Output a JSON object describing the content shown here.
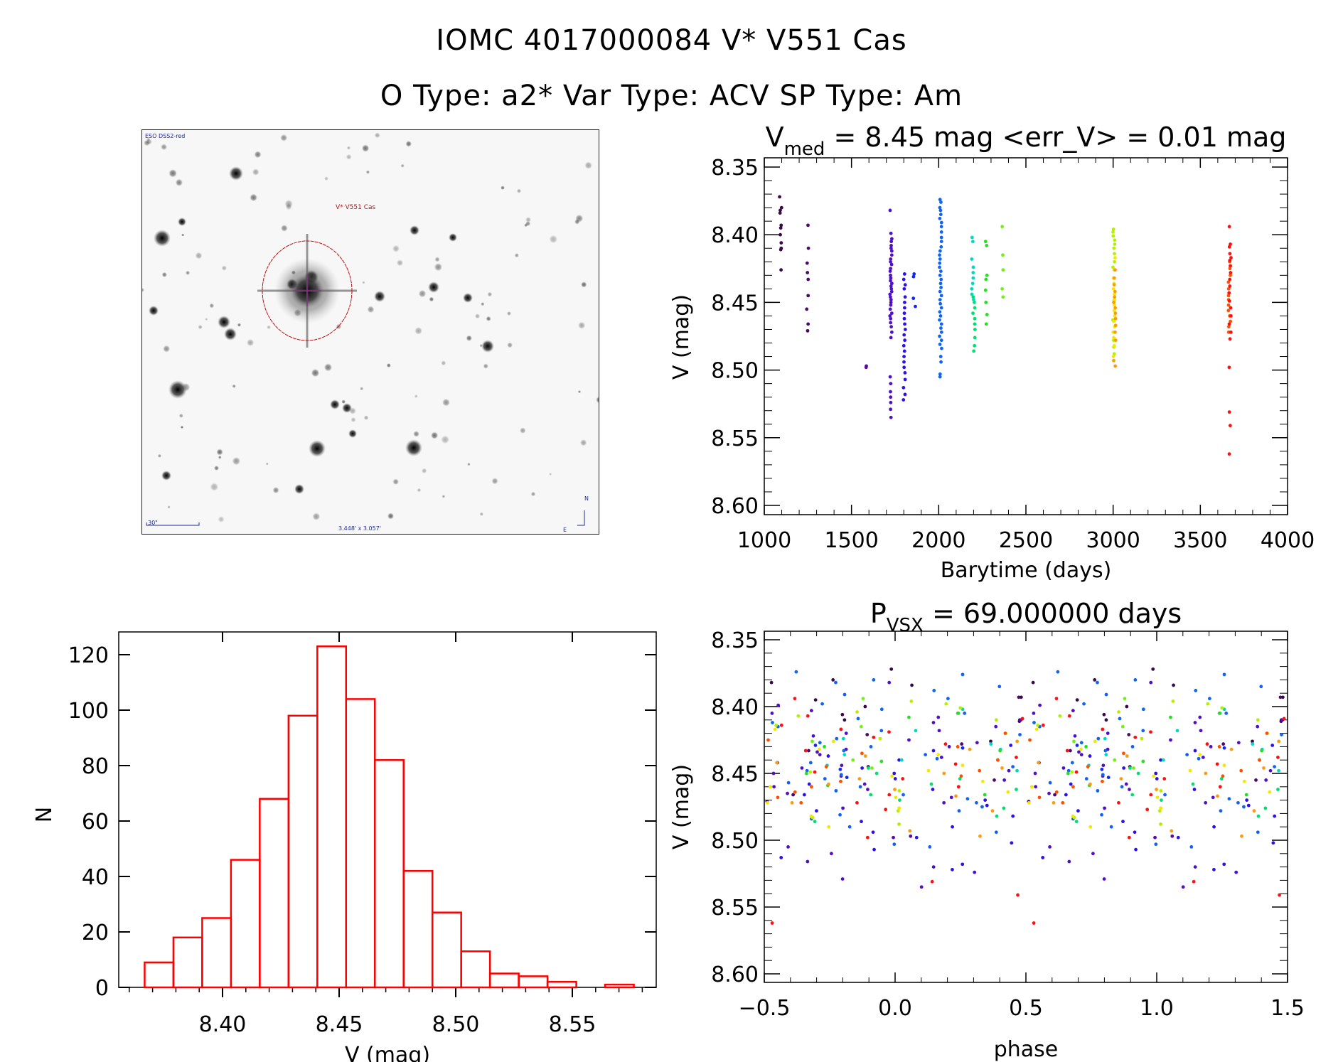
{
  "header": {
    "title_line1": "IOMC 4017000084   V* V551 Cas",
    "title_line2": "O Type: a2*  Var Type: ACV  SP Type: Am"
  },
  "sky_image": {
    "survey_label": "ESO DSS2-red",
    "target_label": "V* V551 Cas",
    "scale_bar_label": "30\"",
    "field_size_label": "3.448' x 3.057'",
    "north_label": "N",
    "east_label": "E",
    "circle_color": "#c01010",
    "crosshair_color": "#a020a0"
  },
  "colors": {
    "histogram": "#ff0000",
    "axis": "#000000"
  },
  "chart_data": [
    {
      "id": "light_curve",
      "type": "scatter",
      "title_main": "V",
      "title_sub": "med",
      "title_rest": " = 8.45 mag <err_V> = 0.01 mag",
      "xlabel": "Barytime (days)",
      "ylabel": "V (mag)",
      "xlim": [
        1000,
        4000
      ],
      "ylim": [
        8.35,
        8.6
      ],
      "y_inverted": true,
      "xticks": [
        1000,
        1500,
        2000,
        2500,
        3000,
        3500,
        4000
      ],
      "xtick_labels": [
        "1000",
        "1500",
        "2000",
        "2500",
        "3000",
        "3500",
        "4000"
      ],
      "yticks": [
        8.35,
        8.4,
        8.45,
        8.5,
        8.55,
        8.6
      ],
      "ytick_labels": [
        "8.35",
        "8.40",
        "8.45",
        "8.50",
        "8.55",
        "8.60"
      ],
      "series": [
        {
          "name": "season-1",
          "color": "#3a0a48",
          "t": 1094,
          "V": [
            8.372,
            8.38,
            8.382,
            8.384,
            8.393,
            8.395,
            8.4,
            8.406,
            8.41,
            8.411,
            8.426
          ]
        },
        {
          "name": "season-2",
          "color": "#4a0a6a",
          "t": 1249,
          "V": [
            8.393,
            8.41,
            8.421,
            8.428,
            8.433,
            8.445,
            8.455,
            8.466,
            8.471
          ]
        },
        {
          "name": "season-3",
          "color": "#5a0aa0",
          "t": 1580,
          "V": [
            8.497,
            8.498
          ]
        },
        {
          "name": "season-4",
          "color": "#5010c8",
          "t": 1726,
          "V": [
            8.382,
            8.399,
            8.403,
            8.405,
            8.408,
            8.41,
            8.412,
            8.415,
            8.418,
            8.42,
            8.422,
            8.425,
            8.427,
            8.43,
            8.432,
            8.434,
            8.436,
            8.438,
            8.44,
            8.442,
            8.444,
            8.446,
            8.448,
            8.45,
            8.452,
            8.455,
            8.458,
            8.46,
            8.462,
            8.465,
            8.468,
            8.472,
            8.476,
            8.505,
            8.51,
            8.516,
            8.52,
            8.524,
            8.529,
            8.535
          ]
        },
        {
          "name": "season-5",
          "color": "#2c12e8",
          "t": 1803,
          "V": [
            8.429,
            8.433,
            8.437,
            8.44,
            8.446,
            8.45,
            8.454,
            8.458,
            8.462,
            8.466,
            8.47,
            8.474,
            8.478,
            8.482,
            8.486,
            8.49,
            8.494,
            8.498,
            8.502,
            8.507,
            8.513,
            8.518,
            8.522
          ]
        },
        {
          "name": "season-6",
          "color": "#1428f4",
          "t": 1860,
          "V": [
            8.429,
            8.431,
            8.447,
            8.453
          ]
        },
        {
          "name": "season-7",
          "color": "#1064f4",
          "t": 2011,
          "V": [
            8.374,
            8.376,
            8.38,
            8.382,
            8.385,
            8.388,
            8.391,
            8.394,
            8.398,
            8.402,
            8.405,
            8.409,
            8.412,
            8.415,
            8.418,
            8.421,
            8.424,
            8.427,
            8.43,
            8.433,
            8.436,
            8.439,
            8.442,
            8.445,
            8.448,
            8.451,
            8.454,
            8.457,
            8.46,
            8.463,
            8.466,
            8.469,
            8.472,
            8.475,
            8.478,
            8.481,
            8.484,
            8.49,
            8.494,
            8.503,
            8.505
          ]
        },
        {
          "name": "season-8",
          "color": "#00d8c0",
          "t": 2195,
          "V": [
            8.402,
            8.405,
            8.418,
            8.424,
            8.428,
            8.432,
            8.436,
            8.44,
            8.444,
            8.448
          ]
        },
        {
          "name": "season-9",
          "color": "#00e070",
          "t": 2202,
          "V": [
            8.446,
            8.45,
            8.454,
            8.458,
            8.462,
            8.466,
            8.47,
            8.476,
            8.482,
            8.486
          ]
        },
        {
          "name": "season-10",
          "color": "#24e020",
          "t": 2272,
          "V": [
            8.405,
            8.408,
            8.43,
            8.433,
            8.441,
            8.45,
            8.459,
            8.466
          ]
        },
        {
          "name": "season-11",
          "color": "#74f018",
          "t": 2366,
          "V": [
            8.394,
            8.415,
            8.426,
            8.44,
            8.446
          ]
        },
        {
          "name": "season-12a",
          "color": "#b4f000",
          "t": 3003,
          "V": [
            8.396,
            8.398,
            8.401,
            8.404,
            8.407,
            8.41,
            8.414,
            8.42,
            8.424,
            8.449,
            8.463,
            8.478,
            8.483,
            8.488
          ]
        },
        {
          "name": "season-12b",
          "color": "#f4e800",
          "t": 3006,
          "V": [
            8.417,
            8.426,
            8.432,
            8.436,
            8.44,
            8.444,
            8.448,
            8.452,
            8.456,
            8.46,
            8.464,
            8.468,
            8.472,
            8.476,
            8.482,
            8.49
          ]
        },
        {
          "name": "season-12c",
          "color": "#ff9a10",
          "t": 3009,
          "V": [
            8.426,
            8.432,
            8.437,
            8.442,
            8.446,
            8.45,
            8.454,
            8.458,
            8.462,
            8.467,
            8.472,
            8.478,
            8.493,
            8.497
          ]
        },
        {
          "name": "season-13a",
          "color": "#ff5000",
          "t": 3667,
          "V": [
            8.42,
            8.425,
            8.43,
            8.435,
            8.44,
            8.445,
            8.448,
            8.452,
            8.456,
            8.46,
            8.464,
            8.468,
            8.472
          ]
        },
        {
          "name": "season-13b",
          "color": "#ff1010",
          "t": 3670,
          "V": [
            8.394,
            8.407,
            8.409,
            8.414,
            8.417,
            8.419,
            8.423,
            8.428,
            8.433,
            8.438,
            8.443,
            8.449,
            8.454,
            8.46,
            8.466,
            8.472,
            8.477,
            8.498,
            8.531,
            8.541,
            8.562
          ]
        }
      ]
    },
    {
      "id": "histogram",
      "type": "bar",
      "xlabel": "V (mag)",
      "ylabel": "N",
      "xlim": [
        8.354,
        8.584
      ],
      "ylim": [
        0,
        128
      ],
      "bin_start": 8.3666,
      "bin_width": 0.01234,
      "values": [
        9,
        18,
        25,
        46,
        68,
        98,
        123,
        104,
        82,
        42,
        27,
        13,
        5,
        4,
        2,
        0,
        1
      ],
      "xticks": [
        8.4,
        8.45,
        8.5,
        8.55
      ],
      "xtick_labels": [
        "8.40",
        "8.45",
        "8.50",
        "8.55"
      ],
      "yticks": [
        0,
        20,
        40,
        60,
        80,
        100,
        120
      ],
      "ytick_labels": [
        "0",
        "20",
        "40",
        "60",
        "80",
        "100",
        "120"
      ]
    },
    {
      "id": "phase_curve",
      "type": "scatter",
      "title_main": "P",
      "title_sub": "VSX",
      "title_rest": " = 69.000000 days",
      "period_days": 69.0,
      "xlabel": "phase",
      "ylabel": "V (mag)",
      "xlim": [
        -0.5,
        1.5
      ],
      "ylim": [
        8.35,
        8.6
      ],
      "y_inverted": true,
      "xticks": [
        -0.5,
        0.0,
        0.5,
        1.0,
        1.5
      ],
      "xtick_labels": [
        "−0.5",
        "0.0",
        "0.5",
        "1.0",
        "1.5"
      ],
      "yticks": [
        8.35,
        8.4,
        8.45,
        8.5,
        8.55,
        8.6
      ],
      "ytick_labels": [
        "8.35",
        "8.40",
        "8.45",
        "8.50",
        "8.55",
        "8.60"
      ],
      "note": "points are the light_curve series folded on period_days, plotted at phase and phase+1"
    }
  ]
}
